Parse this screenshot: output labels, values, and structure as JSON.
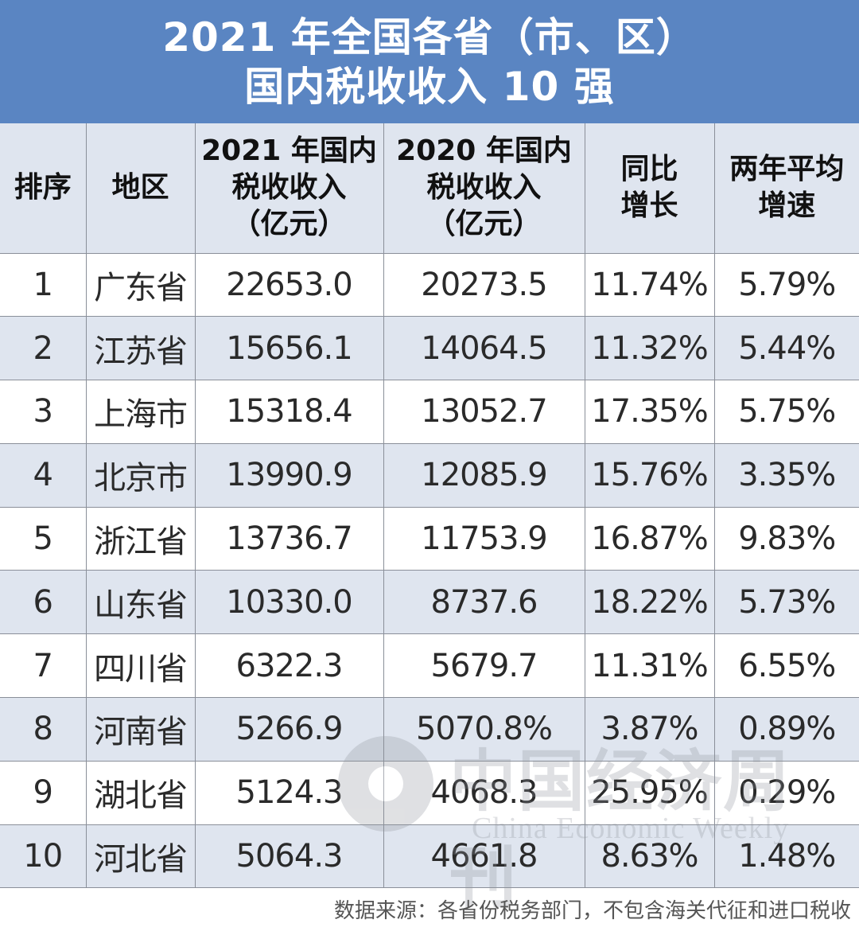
{
  "title": {
    "line1": "2021 年全国各省（市、区）",
    "line2": "国内税收收入 10 强"
  },
  "table": {
    "headers": [
      [
        "排序"
      ],
      [
        "地区"
      ],
      [
        "2021 年国内",
        "税收收入",
        "（亿元）"
      ],
      [
        "2020 年国内",
        "税收收入",
        "（亿元）"
      ],
      [
        "同比",
        "增长"
      ],
      [
        "两年平均",
        "增速"
      ]
    ],
    "rows": [
      [
        "1",
        "广东省",
        "22653.0",
        "20273.5",
        "11.74%",
        "5.79%"
      ],
      [
        "2",
        "江苏省",
        "15656.1",
        "14064.5",
        "11.32%",
        "5.44%"
      ],
      [
        "3",
        "上海市",
        "15318.4",
        "13052.7",
        "17.35%",
        "5.75%"
      ],
      [
        "4",
        "北京市",
        "13990.9",
        "12085.9",
        "15.76%",
        "3.35%"
      ],
      [
        "5",
        "浙江省",
        "13736.7",
        "11753.9",
        "16.87%",
        "9.83%"
      ],
      [
        "6",
        "山东省",
        "10330.0",
        "8737.6",
        "18.22%",
        "5.73%"
      ],
      [
        "7",
        "四川省",
        "6322.3",
        "5679.7",
        "11.31%",
        "6.55%"
      ],
      [
        "8",
        "河南省",
        "5266.9",
        "5070.8%",
        "3.87%",
        "0.89%"
      ],
      [
        "9",
        "湖北省",
        "5124.3",
        "4068.3",
        "25.95%",
        "0.29%"
      ],
      [
        "10",
        "河北省",
        "5064.3",
        "4661.8",
        "8.63%",
        "1.48%"
      ]
    ]
  },
  "source": "数据来源：各省份税务部门，不包含海关代征和进口税收",
  "watermark": {
    "cn": "中国经济周刊",
    "en": "China Economic Weekly"
  },
  "colors": {
    "title_bg": "#5a85c2",
    "stripe": "#dfe5ef",
    "grid": "#8a8f99"
  }
}
